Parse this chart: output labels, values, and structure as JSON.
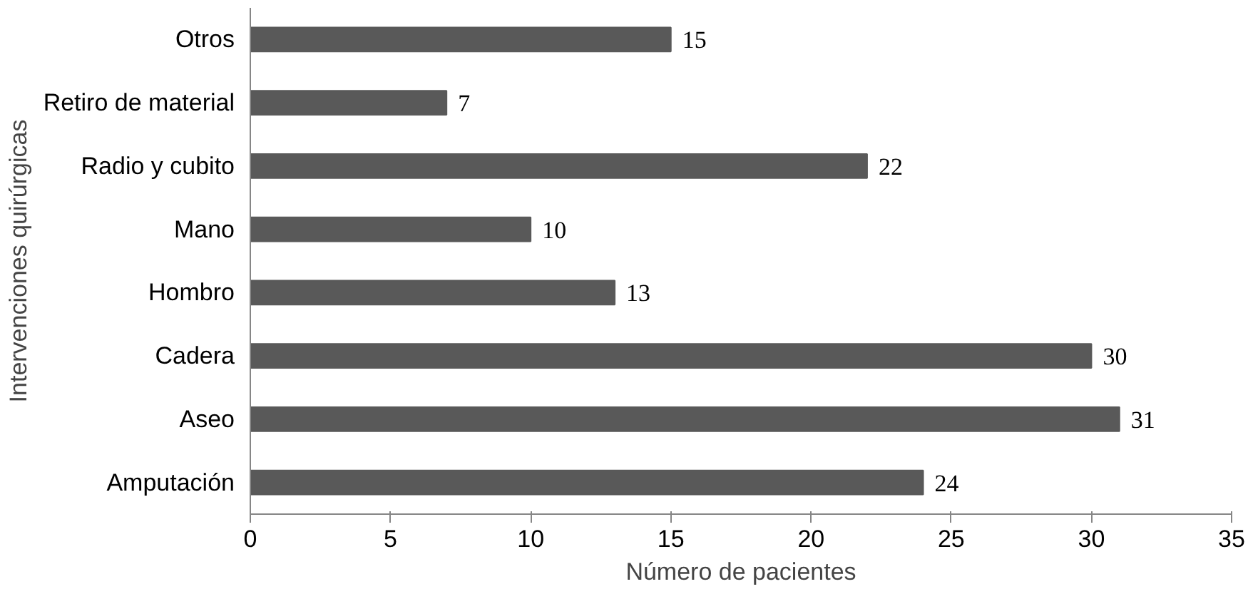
{
  "chart_data": {
    "type": "bar",
    "orientation": "horizontal",
    "xlabel": "Número de pacientes",
    "ylabel": "Intervenciones quirúrgicas",
    "categories": [
      "Otros",
      "Retiro de material",
      "Radio y cubito",
      "Mano",
      "Hombro",
      "Cadera",
      "Aseo",
      "Amputación"
    ],
    "values": [
      15,
      7,
      22,
      10,
      13,
      30,
      31,
      24
    ],
    "color": "#595959",
    "xlim": [
      0,
      35
    ],
    "xticks": [
      0,
      5,
      10,
      15,
      20,
      25,
      30,
      35
    ],
    "grid": false,
    "data_labels": true
  }
}
